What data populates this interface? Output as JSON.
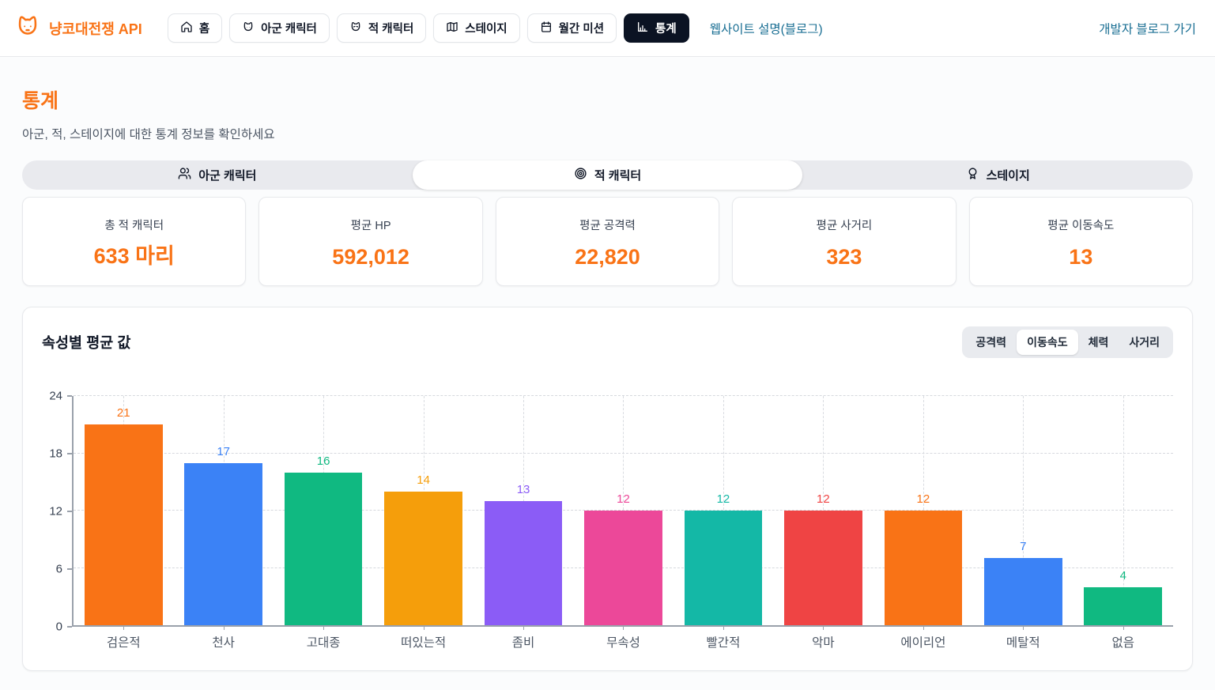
{
  "header": {
    "logo_text": "냥코대전쟁 API",
    "nav": [
      {
        "label": "홈",
        "icon": "home-icon",
        "active": false
      },
      {
        "label": "아군 캐릭터",
        "icon": "friendly-cat-icon",
        "active": false
      },
      {
        "label": "적 캐릭터",
        "icon": "enemy-cat-icon",
        "active": false
      },
      {
        "label": "스테이지",
        "icon": "map-icon",
        "active": false
      },
      {
        "label": "월간 미션",
        "icon": "calendar-icon",
        "active": false
      },
      {
        "label": "통계",
        "icon": "bar-chart-icon",
        "active": true
      }
    ],
    "site_desc_link": "웹사이트 설명(블로그)",
    "dev_blog_link": "개발자 블로그 가기"
  },
  "page": {
    "title": "통계",
    "subtitle": "아군, 적, 스테이지에 대한 통계 정보를 확인하세요"
  },
  "tabs": [
    {
      "label": "아군 캐릭터",
      "icon": "users-icon",
      "active": false
    },
    {
      "label": "적 캐릭터",
      "icon": "target-icon",
      "active": true
    },
    {
      "label": "스테이지",
      "icon": "medal-icon",
      "active": false
    }
  ],
  "stat_cards": [
    {
      "label": "총 적 캐릭터",
      "value": "633 마리"
    },
    {
      "label": "평균 HP",
      "value": "592,012"
    },
    {
      "label": "평균 공격력",
      "value": "22,820"
    },
    {
      "label": "평균 사거리",
      "value": "323"
    },
    {
      "label": "평균 이동속도",
      "value": "13"
    }
  ],
  "chart_section": {
    "title": "속성별 평균 값",
    "toggles": [
      {
        "label": "공격력",
        "active": false
      },
      {
        "label": "이동속도",
        "active": true
      },
      {
        "label": "체력",
        "active": false
      },
      {
        "label": "사거리",
        "active": false
      }
    ]
  },
  "chart_data": {
    "type": "bar",
    "title": "속성별 평균 값",
    "categories": [
      "검은적",
      "천사",
      "고대종",
      "떠있는적",
      "좀비",
      "무속성",
      "빨간적",
      "악마",
      "에이리언",
      "메탈적",
      "없음"
    ],
    "values": [
      21,
      17,
      16,
      14,
      13,
      12,
      12,
      12,
      12,
      7,
      4
    ],
    "bar_colors": [
      "#f97316",
      "#3b82f6",
      "#10b981",
      "#f59e0b",
      "#8b5cf6",
      "#ec4899",
      "#14b8a6",
      "#ef4444",
      "#f97316",
      "#3b82f6",
      "#10b981"
    ],
    "xlabel": "",
    "ylabel": "",
    "ylim": [
      0,
      24
    ],
    "yticks": [
      0,
      6,
      12,
      18,
      24
    ],
    "grid": true,
    "legend": false,
    "value_labels": true
  },
  "colors": {
    "accent": "#f97316",
    "link": "#176d92",
    "nav_active_bg": "#0b1323",
    "axis": "#9aa1ab",
    "gridline": "#d6d9de"
  }
}
